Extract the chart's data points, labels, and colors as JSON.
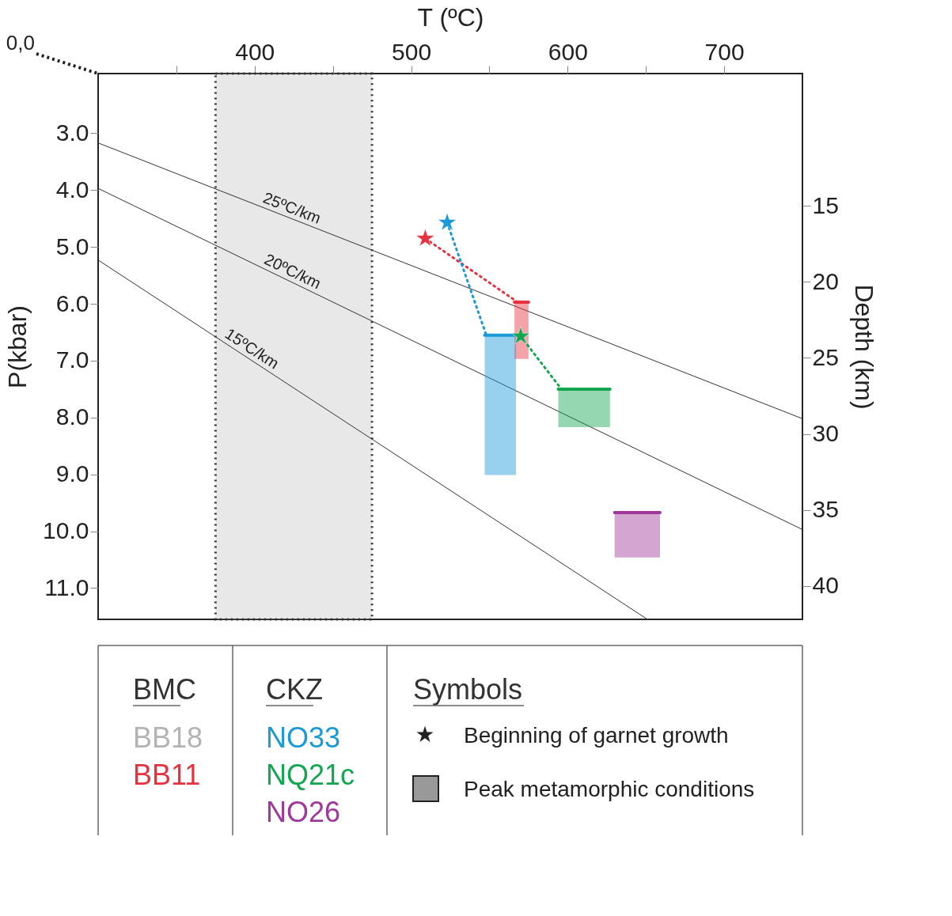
{
  "chart_data": {
    "type": "scatter",
    "xlabel": "T (ºC)",
    "ylabel": "P(kbar)",
    "y2label": "Depth (km)",
    "xlim": [
      300,
      750
    ],
    "ylim": [
      11.55,
      1.95
    ],
    "y2lim": [
      42.2,
      6.3
    ],
    "xticks": [
      {
        "value": 350,
        "label": null
      },
      400,
      {
        "value": 450,
        "label": null
      },
      500,
      {
        "value": 550,
        "label": null
      },
      600,
      {
        "value": 650,
        "label": null
      },
      700
    ],
    "yticks": [
      {
        "value": 3,
        "label": "3.0"
      },
      {
        "value": 4,
        "label": "4.0"
      },
      {
        "value": 5,
        "label": "5.0"
      },
      {
        "value": 6,
        "label": "6.0"
      },
      {
        "value": 7,
        "label": "7.0"
      },
      {
        "value": 8,
        "label": "8.0"
      },
      {
        "value": 9,
        "label": "9.0"
      },
      {
        "value": 10,
        "label": "10.0"
      },
      {
        "value": 11,
        "label": "11.0"
      }
    ],
    "y2ticks": [
      15,
      20,
      25,
      30,
      35,
      40
    ],
    "grid": false,
    "legend": "bottom",
    "bands": [
      {
        "axis": "x",
        "from": 375,
        "to": 475,
        "label": "BB18",
        "color": "#b3b3b3"
      }
    ],
    "series": [
      {
        "name": "25ºC/km",
        "type": "line",
        "color": "#333333",
        "x": [
          300,
          750
        ],
        "values": [
          3.17,
          8.02
        ]
      },
      {
        "name": "20ºC/km",
        "type": "line",
        "color": "#333333",
        "x": [
          300,
          750
        ],
        "values": [
          3.97,
          9.97
        ]
      },
      {
        "name": "15ºC/km",
        "type": "line",
        "color": "#333333",
        "x": [
          300,
          651
        ],
        "values": [
          5.23,
          11.55
        ]
      },
      {
        "name": "BB11",
        "type": "line",
        "color": "#e6323e",
        "x": [
          566,
          575
        ],
        "values": [
          5.97,
          5.97
        ],
        "lower": [
          5.97,
          5.97
        ],
        "upper": [
          6.97,
          6.97
        ]
      },
      {
        "name": "NO33",
        "type": "line",
        "color": "#1a9ad6",
        "x": [
          547,
          567
        ],
        "values": [
          6.55,
          6.55
        ],
        "lower": [
          6.55,
          6.55
        ],
        "upper": [
          9.01,
          9.01
        ]
      },
      {
        "name": "NQ21c",
        "type": "line",
        "color": "#12a650",
        "x": [
          594,
          627
        ],
        "values": [
          7.5,
          7.5
        ],
        "lower": [
          7.5,
          7.5
        ],
        "upper": [
          8.17,
          8.17
        ]
      },
      {
        "name": "NO26",
        "type": "line",
        "color": "#a0379a",
        "x": [
          630,
          659
        ],
        "values": [
          9.67,
          9.67
        ],
        "lower": [
          9.67,
          9.67
        ],
        "upper": [
          10.46,
          10.46
        ]
      },
      {
        "type": "line",
        "line_style": "dotted",
        "color": "#e6323e",
        "x": [
          509,
          568
        ],
        "values": [
          4.85,
          5.97
        ]
      },
      {
        "type": "line",
        "line_style": "dotted",
        "color": "#1a9ad6",
        "x": [
          523,
          548
        ],
        "values": [
          4.57,
          6.55
        ]
      },
      {
        "type": "line",
        "line_style": "dotted",
        "color": "#12a650",
        "x": [
          570,
          596
        ],
        "values": [
          6.57,
          7.5
        ]
      },
      {
        "marker": "star",
        "color": "#e6323e",
        "x": [
          509
        ],
        "values": [
          4.85
        ]
      },
      {
        "marker": "star",
        "color": "#1a9ad6",
        "x": [
          523
        ],
        "values": [
          4.57
        ]
      },
      {
        "marker": "star",
        "color": "#12a650",
        "x": [
          570
        ],
        "values": [
          6.57
        ]
      }
    ],
    "annotations": [
      "0,0",
      "BMC",
      "CKZ",
      "Symbols",
      "Beginning of garnet growth",
      "Peak metamorphic conditions"
    ]
  }
}
